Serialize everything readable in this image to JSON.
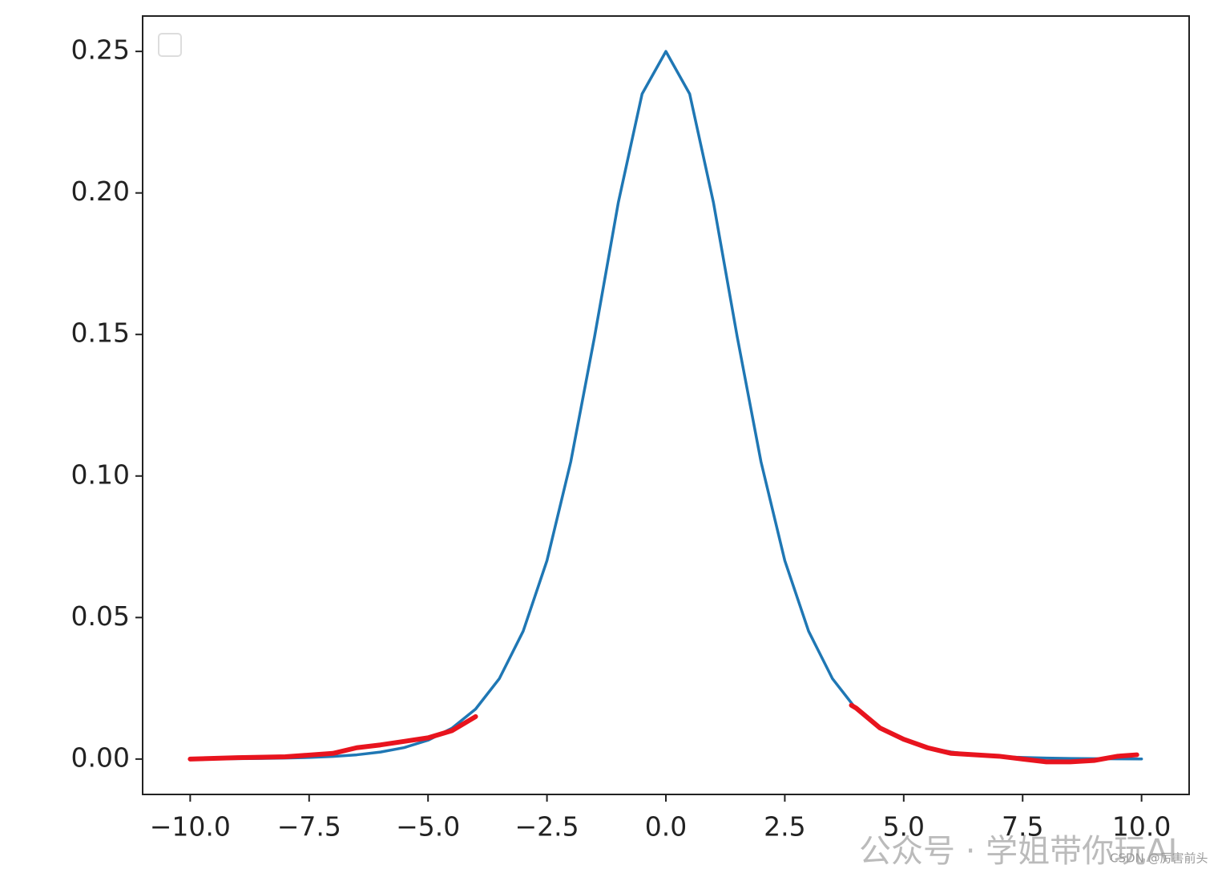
{
  "chart_data": {
    "type": "line",
    "series": [
      {
        "color": "#1f77b4",
        "x": [
          -10,
          -9.5,
          -9,
          -8.5,
          -8,
          -7.5,
          -7,
          -6.5,
          -6,
          -5.5,
          -5,
          -4.5,
          -4,
          -3.5,
          -3,
          -2.5,
          -2,
          -1.5,
          -1,
          -0.5,
          0,
          0.5,
          1,
          1.5,
          2,
          2.5,
          3,
          3.5,
          4,
          4.5,
          5,
          5.5,
          6,
          6.5,
          7,
          7.5,
          8,
          8.5,
          9,
          9.5,
          10
        ],
        "values": [
          4.54e-05,
          7.48e-05,
          0.000123,
          0.000203,
          0.000335,
          0.000553,
          0.00091,
          0.001499,
          0.002467,
          0.004054,
          0.006648,
          0.010866,
          0.017663,
          0.028453,
          0.045177,
          0.070104,
          0.104994,
          0.149146,
          0.196612,
          0.235004,
          0.25,
          0.235004,
          0.196612,
          0.149146,
          0.104994,
          0.070104,
          0.045177,
          0.028453,
          0.017663,
          0.010866,
          0.006648,
          0.004054,
          0.002467,
          0.001499,
          0.00091,
          0.000553,
          0.000335,
          0.000203,
          0.000123,
          7.48e-05,
          4.54e-05
        ]
      },
      {
        "color": "#e8141e",
        "x": [
          -10,
          -9,
          -8,
          -7,
          -6.5,
          -6,
          -5,
          -4.5,
          -4
        ],
        "values": [
          0,
          0.0005,
          0.0008,
          0.002,
          0.004,
          0.005,
          0.0075,
          0.01,
          0.015
        ]
      },
      {
        "color": "#e8141e",
        "x": [
          3.9,
          4,
          4.5,
          5,
          5.5,
          6,
          7,
          7.5,
          8,
          8.5,
          9,
          9.5,
          9.9
        ],
        "values": [
          0.019,
          0.018,
          0.011,
          0.007,
          0.004,
          0.002,
          0.001,
          0,
          -0.001,
          -0.001,
          -0.0005,
          0.001,
          0.0015
        ]
      }
    ],
    "xlim": [
      -11,
      11
    ],
    "ylim": [
      -0.0125,
      0.2625
    ],
    "xticks": [
      {
        "value": -10,
        "label": "−10.0"
      },
      {
        "value": -7.5,
        "label": "−7.5"
      },
      {
        "value": -5,
        "label": "−5.0"
      },
      {
        "value": -2.5,
        "label": "−2.5"
      },
      {
        "value": 0,
        "label": "0.0"
      },
      {
        "value": 2.5,
        "label": "2.5"
      },
      {
        "value": 5,
        "label": "5.0"
      },
      {
        "value": 7.5,
        "label": "7.5"
      },
      {
        "value": 10,
        "label": "10.0"
      }
    ],
    "yticks": [
      {
        "value": 0,
        "label": "0.00"
      },
      {
        "value": 0.05,
        "label": "0.05"
      },
      {
        "value": 0.1,
        "label": "0.10"
      },
      {
        "value": 0.15,
        "label": "0.15"
      },
      {
        "value": 0.2,
        "label": "0.20"
      },
      {
        "value": 0.25,
        "label": "0.25"
      }
    ],
    "annotations": [
      "公众号 · 学姐带你玩AI",
      "CSDN @厉害前头"
    ]
  }
}
